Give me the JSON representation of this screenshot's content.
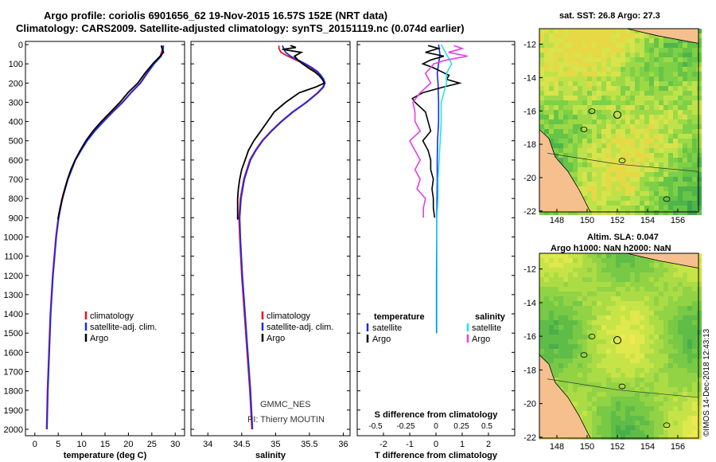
{
  "header": {
    "line1": "Argo profile: coriolis 6901656_62 19-Nov-2015 16.57S 152E (NRT data)",
    "line2": "Climatology: CARS2009. Satellite-adjusted climatology: synTS_20151119.nc (0.074d earlier)"
  },
  "colors": {
    "climatology": "#e8141e",
    "satellite": "#1a2be8",
    "argo": "#000000",
    "sal_satellite": "#22e4ee",
    "sal_argo": "#e83ce8",
    "land": "#f5c08e"
  },
  "chart_data": [
    {
      "id": "temperature",
      "type": "line",
      "xlabel": "temperature (deg C)",
      "ylabel": "",
      "xlim": [
        -2,
        32
      ],
      "ylim": [
        2050,
        0
      ],
      "xticks": [
        "0",
        "5",
        "10",
        "15",
        "20",
        "25",
        "30"
      ],
      "yticks": [
        "0",
        "100",
        "200",
        "300",
        "400",
        "500",
        "600",
        "700",
        "800",
        "900",
        "1000",
        "1100",
        "1200",
        "1300",
        "1400",
        "1500",
        "1600",
        "1700",
        "1800",
        "1900",
        "2000"
      ],
      "legend": [
        "climatology",
        "satellite-adj. clim.",
        "Argo"
      ],
      "series": [
        {
          "name": "climatology",
          "depth": [
            5,
            30,
            60,
            100,
            150,
            200,
            250,
            300,
            350,
            400,
            450,
            500,
            550,
            600,
            700,
            800,
            900,
            1000,
            1200,
            1400,
            1600,
            1800,
            2000
          ],
          "values": [
            27.3,
            27.2,
            26.8,
            25.4,
            23.9,
            22.5,
            20.5,
            18.7,
            16.6,
            14.6,
            12.7,
            11.1,
            9.8,
            8.6,
            7.0,
            5.8,
            5.0,
            4.5,
            3.8,
            3.3,
            3.0,
            2.7,
            2.5
          ]
        },
        {
          "name": "satellite-adj. clim.",
          "depth": [
            5,
            30,
            60,
            100,
            150,
            200,
            250,
            300,
            350,
            400,
            450,
            500,
            550,
            600,
            700,
            800,
            900,
            1000,
            1200,
            1400,
            1600,
            1800,
            2000
          ],
          "values": [
            27.5,
            27.4,
            27.0,
            25.5,
            24.0,
            22.6,
            20.6,
            18.8,
            16.7,
            14.7,
            12.8,
            11.2,
            9.9,
            8.7,
            7.1,
            5.9,
            5.1,
            4.6,
            3.9,
            3.4,
            3.1,
            2.8,
            2.6
          ]
        },
        {
          "name": "Argo",
          "depth": [
            5,
            20,
            40,
            60,
            80,
            100,
            150,
            200,
            250,
            300,
            350,
            400,
            450,
            500,
            550,
            600,
            650,
            700,
            750,
            800,
            850,
            900,
            910
          ],
          "values": [
            27.0,
            27.2,
            27.5,
            26.8,
            26.0,
            25.2,
            23.5,
            22.0,
            19.9,
            18.2,
            16.2,
            14.2,
            12.4,
            10.9,
            9.7,
            8.6,
            7.7,
            7.0,
            6.4,
            5.9,
            5.4,
            5.0,
            5.0
          ]
        }
      ]
    },
    {
      "id": "salinity",
      "type": "line",
      "xlabel": "salinity",
      "ylabel": "",
      "xlim": [
        33.75,
        36.1
      ],
      "ylim": [
        2050,
        0
      ],
      "xticks": [
        "34",
        "34.5",
        "35",
        "35.5",
        "36"
      ],
      "legend": [
        "climatology",
        "satellite-adj. clim.",
        "Argo"
      ],
      "annotations": [
        "GMMC_NES",
        "PI: Thierry MOUTIN"
      ],
      "series": [
        {
          "name": "climatology",
          "depth": [
            5,
            20,
            40,
            60,
            80,
            100,
            120,
            140,
            160,
            180,
            200,
            220,
            250,
            300,
            350,
            400,
            450,
            500,
            550,
            600,
            700,
            800,
            900,
            1000,
            1200,
            1400,
            1600,
            1800,
            2000
          ],
          "values": [
            35.05,
            35.05,
            35.08,
            35.18,
            35.3,
            35.42,
            35.52,
            35.6,
            35.66,
            35.7,
            35.72,
            35.7,
            35.62,
            35.45,
            35.25,
            35.08,
            34.93,
            34.8,
            34.7,
            34.62,
            34.53,
            34.48,
            34.46,
            34.47,
            34.5,
            34.54,
            34.58,
            34.62,
            34.65
          ]
        },
        {
          "name": "satellite-adj. clim.",
          "depth": [
            5,
            20,
            40,
            60,
            80,
            100,
            120,
            140,
            160,
            180,
            200,
            220,
            250,
            300,
            350,
            400,
            450,
            500,
            550,
            600,
            700,
            800,
            900,
            1000,
            1200,
            1400,
            1600,
            1800,
            2000
          ],
          "values": [
            35.1,
            35.12,
            35.15,
            35.22,
            35.33,
            35.44,
            35.54,
            35.62,
            35.67,
            35.71,
            35.73,
            35.71,
            35.63,
            35.46,
            35.26,
            35.09,
            34.94,
            34.81,
            34.71,
            34.63,
            34.54,
            34.49,
            34.47,
            34.48,
            34.51,
            34.55,
            34.59,
            34.63,
            34.66
          ]
        },
        {
          "name": "Argo",
          "depth": [
            5,
            15,
            25,
            40,
            60,
            80,
            100,
            120,
            140,
            160,
            180,
            200,
            220,
            250,
            300,
            350,
            400,
            450,
            500,
            550,
            600,
            650,
            700,
            750,
            800,
            850,
            900,
            910
          ],
          "values": [
            35.22,
            35.3,
            35.1,
            35.38,
            35.28,
            35.33,
            35.4,
            35.48,
            35.57,
            35.64,
            35.69,
            35.72,
            35.6,
            35.35,
            35.15,
            34.98,
            34.88,
            34.78,
            34.68,
            34.6,
            34.55,
            34.5,
            34.47,
            34.45,
            34.44,
            34.44,
            34.44,
            34.44
          ]
        }
      ]
    },
    {
      "id": "difference",
      "type": "line",
      "xlabel": "T difference from climatology",
      "xlabel_top": "S difference from climatology",
      "xlim": [
        -3,
        3
      ],
      "ylim": [
        2050,
        0
      ],
      "xticks": [
        "-2",
        "-1",
        "0",
        "1",
        "2"
      ],
      "xticks_top": [
        "-0.5",
        "-0.25",
        "0",
        "0.25",
        "0.5"
      ],
      "legend_left_title": "temperature",
      "legend_right_title": "salinity",
      "legend_left": [
        "satellite",
        "Argo"
      ],
      "legend_right": [
        "satellite",
        "Argo"
      ],
      "series": [
        {
          "name": "T satellite",
          "depth": [
            0,
            50,
            100,
            150,
            200,
            300,
            400,
            500,
            600,
            700,
            800,
            900,
            1000,
            1200,
            1400,
            1500
          ],
          "values": [
            0.1,
            0.15,
            0.1,
            0.05,
            0.08,
            0.1,
            0.1,
            0.06,
            0.05,
            0.05,
            0.04,
            0.03,
            0.03,
            0.02,
            0.02,
            0.02
          ]
        },
        {
          "name": "T Argo",
          "depth": [
            5,
            20,
            40,
            60,
            80,
            100,
            120,
            140,
            160,
            180,
            200,
            220,
            250,
            280,
            300,
            350,
            400,
            450,
            500,
            550,
            600,
            650,
            700,
            750,
            800,
            850,
            900
          ],
          "values": [
            -0.3,
            0.1,
            -0.4,
            0.3,
            -0.2,
            -0.5,
            -0.1,
            0.2,
            0.5,
            0.4,
            0.9,
            0.3,
            -0.5,
            -0.9,
            -0.8,
            -0.4,
            -0.3,
            -0.2,
            -0.5,
            -0.3,
            -0.2,
            -0.2,
            -0.1,
            -0.15,
            -0.1,
            -0.1,
            -0.05
          ]
        },
        {
          "name": "S satellite",
          "depth": [
            0,
            50,
            100,
            150,
            200,
            300,
            400,
            500,
            600,
            700,
            800,
            900,
            1000,
            1200,
            1400,
            1500
          ],
          "values": [
            0.05,
            0.1,
            0.15,
            0.1,
            0.1,
            0.05,
            0.05,
            0.04,
            0.03,
            0.02,
            0.02,
            0.01,
            0.01,
            0.01,
            0.01,
            0.01
          ]
        },
        {
          "name": "S Argo",
          "depth": [
            5,
            20,
            40,
            60,
            80,
            100,
            150,
            200,
            250,
            300,
            350,
            400,
            450,
            500,
            550,
            600,
            650,
            700,
            750,
            800,
            850,
            900
          ],
          "values": [
            0.17,
            0.25,
            0.12,
            0.3,
            0.1,
            -0.02,
            -0.1,
            -0.05,
            -0.15,
            -0.22,
            -0.2,
            -0.2,
            -0.15,
            -0.25,
            -0.2,
            -0.15,
            -0.2,
            -0.15,
            -0.18,
            -0.1,
            -0.12,
            -0.12
          ]
        }
      ]
    },
    {
      "id": "sst_map",
      "type": "heatmap",
      "title": "sat. SST: 26.8 Argo: 27.3",
      "xticks": [
        "148",
        "150",
        "152",
        "154",
        "156"
      ],
      "yticks": [
        "-12",
        "-14",
        "-16",
        "-18",
        "-20",
        "-22"
      ]
    },
    {
      "id": "sla_map",
      "type": "heatmap",
      "title_line1": "Altim. SLA: 0.047",
      "title_line2": "Argo h1000: NaN h2000: NaN",
      "xticks": [
        "148",
        "150",
        "152",
        "154",
        "156"
      ],
      "yticks": [
        "-12",
        "-14",
        "-16",
        "-18",
        "-20",
        "-22"
      ]
    }
  ],
  "footer": {
    "stamp": "©IMOS 14-Dec-2018 12:43:13"
  }
}
